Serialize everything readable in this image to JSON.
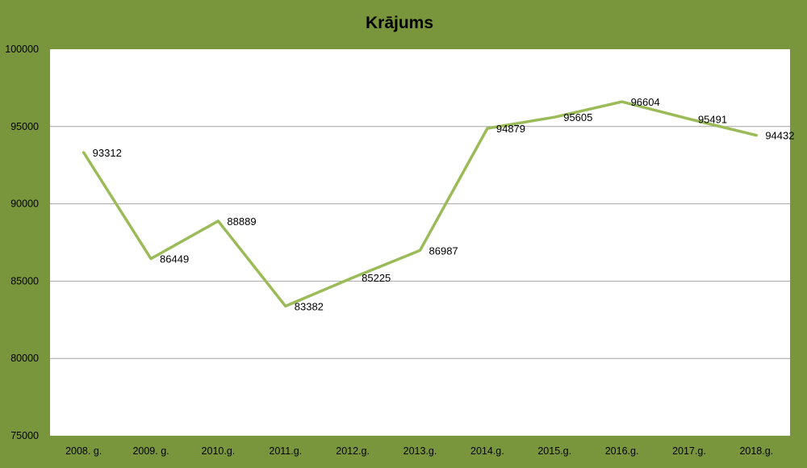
{
  "chart_data": {
    "type": "line",
    "title": "Krājums",
    "categories": [
      "2008. g.",
      "2009. g.",
      "2010.g.",
      "2011.g.",
      "2012.g.",
      "2013.g.",
      "2014.g.",
      "2015.g.",
      "2016.g.",
      "2017.g.",
      "2018.g."
    ],
    "series": [
      {
        "values": [
          93312,
          86449,
          88889,
          83382,
          85225,
          86987,
          94879,
          95605,
          96604,
          95491,
          94432
        ],
        "color": "#9bbb59"
      }
    ],
    "ylim": [
      75000,
      100000
    ],
    "yticks": [
      "100000",
      "95000",
      "90000",
      "85000",
      "80000",
      "75000"
    ],
    "ytick_values": [
      100000,
      95000,
      90000,
      85000,
      80000,
      75000
    ],
    "xlabel": "",
    "ylabel": "",
    "grid": true,
    "legend": "none",
    "background_color": "#7a963d",
    "plot_background_color": "#ffffff",
    "gridline_color": "#a6a6a6"
  }
}
